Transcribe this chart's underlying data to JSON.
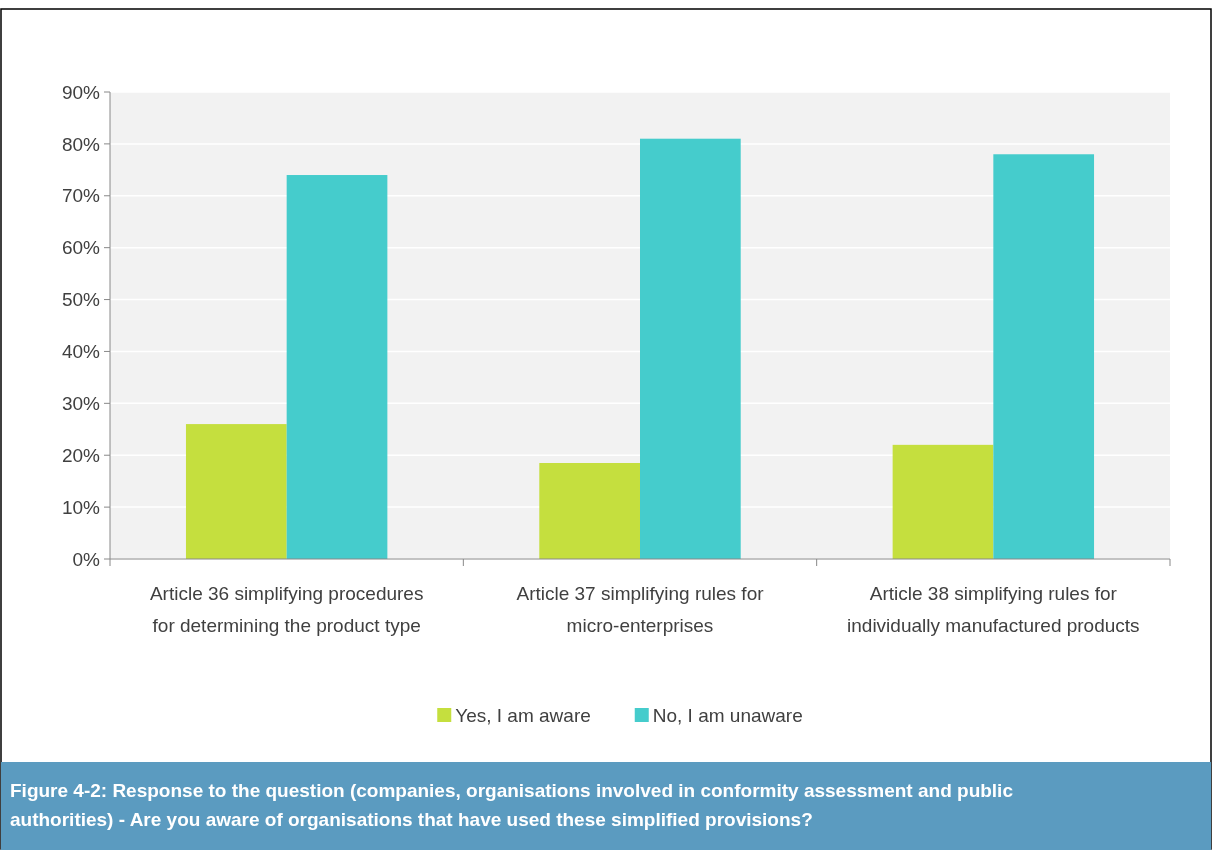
{
  "chart_data": {
    "type": "bar",
    "categories": [
      "Article 36 simplifying procedures for determining the product type",
      "Article 37 simplifying rules for micro-enterprises",
      "Article 38 simplifying rules for individually manufactured products"
    ],
    "series": [
      {
        "name": "Yes, I am aware",
        "color": "#c5df3e",
        "values": [
          26,
          18.5,
          22
        ]
      },
      {
        "name": "No, I am unaware",
        "color": "#45cccc",
        "values": [
          74,
          81,
          78
        ]
      }
    ],
    "ylim": [
      0,
      90
    ],
    "yticks": [
      {
        "value": 0,
        "label": "0%"
      },
      {
        "value": 10,
        "label": "10%"
      },
      {
        "value": 20,
        "label": "20%"
      },
      {
        "value": 30,
        "label": "30%"
      },
      {
        "value": 40,
        "label": "40%"
      },
      {
        "value": 50,
        "label": "50%"
      },
      {
        "value": 60,
        "label": "60%"
      },
      {
        "value": 70,
        "label": "70%"
      },
      {
        "value": 80,
        "label": "80%"
      },
      {
        "value": 90,
        "label": "90%"
      }
    ],
    "grid": "y",
    "legend": "bottom",
    "annotations": [
      "Figure 4-2: Response to the question (companies, organisations involved in conformity assessment and public authorities) - Are you aware of organisations that have used these simplified provisions?"
    ]
  }
}
